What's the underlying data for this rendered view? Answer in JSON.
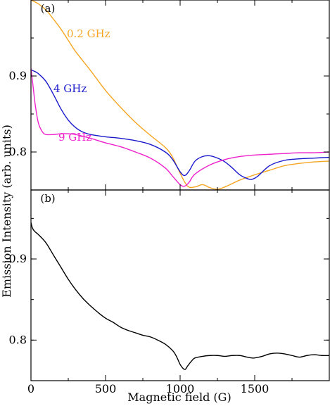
{
  "chart_data": [
    {
      "type": "line",
      "panel_label": "(a)",
      "xlim": [
        0,
        2000
      ],
      "ylim": [
        0.75,
        1.0
      ],
      "yticks": [
        0.8,
        0.9
      ],
      "series": [
        {
          "name": "0.2 GHz",
          "color": "#f5a623",
          "x": [
            0,
            50,
            100,
            150,
            200,
            250,
            300,
            400,
            500,
            600,
            700,
            800,
            900,
            950,
            1000,
            1050,
            1100,
            1150,
            1200,
            1250,
            1300,
            1400,
            1500,
            1600,
            1700,
            1800,
            1900,
            2000
          ],
          "y": [
            1.0,
            0.995,
            0.987,
            0.975,
            0.962,
            0.947,
            0.932,
            0.907,
            0.881,
            0.859,
            0.839,
            0.822,
            0.806,
            0.793,
            0.772,
            0.755,
            0.754,
            0.757,
            0.753,
            0.751,
            0.754,
            0.763,
            0.77,
            0.776,
            0.782,
            0.785,
            0.787,
            0.788
          ]
        },
        {
          "name": "4 GHz",
          "color": "#1a1acc",
          "x": [
            0,
            25,
            50,
            100,
            150,
            200,
            250,
            300,
            350,
            400,
            500,
            600,
            700,
            800,
            900,
            950,
            1000,
            1030,
            1060,
            1100,
            1150,
            1200,
            1250,
            1300,
            1350,
            1400,
            1450,
            1480,
            1520,
            1600,
            1700,
            1800,
            1900,
            2000
          ],
          "y": [
            0.908,
            0.906,
            0.903,
            0.893,
            0.876,
            0.857,
            0.842,
            0.832,
            0.826,
            0.823,
            0.82,
            0.818,
            0.815,
            0.81,
            0.8,
            0.79,
            0.774,
            0.769,
            0.775,
            0.788,
            0.794,
            0.795,
            0.792,
            0.787,
            0.779,
            0.77,
            0.765,
            0.764,
            0.768,
            0.782,
            0.789,
            0.791,
            0.792,
            0.793
          ]
        },
        {
          "name": "9 GHz",
          "color": "#ee22cc",
          "x": [
            0,
            15,
            30,
            50,
            75,
            100,
            150,
            200,
            250,
            300,
            400,
            500,
            600,
            700,
            800,
            900,
            950,
            1000,
            1030,
            1060,
            1100,
            1200,
            1300,
            1400,
            1500,
            1600,
            1700,
            1800,
            1900,
            2000
          ],
          "y": [
            0.91,
            0.885,
            0.86,
            0.838,
            0.827,
            0.823,
            0.823,
            0.824,
            0.824,
            0.823,
            0.818,
            0.812,
            0.807,
            0.8,
            0.792,
            0.779,
            0.768,
            0.757,
            0.755,
            0.76,
            0.771,
            0.783,
            0.79,
            0.794,
            0.796,
            0.797,
            0.798,
            0.799,
            0.799,
            0.8
          ]
        }
      ]
    },
    {
      "type": "line",
      "panel_label": "(b)",
      "xlim": [
        0,
        2000
      ],
      "ylim": [
        0.75,
        0.985
      ],
      "yticks": [
        0.8,
        0.9
      ],
      "xticks": [
        0,
        500,
        1000,
        1500
      ],
      "xlabel": "Magnetic field (G)",
      "ylabel": "Emission Intensity (arb. units)",
      "series": [
        {
          "name": "",
          "color": "#000000",
          "x": [
            0,
            10,
            25,
            50,
            100,
            150,
            200,
            250,
            300,
            350,
            400,
            450,
            500,
            550,
            600,
            650,
            700,
            750,
            800,
            850,
            900,
            950,
            975,
            1000,
            1020,
            1035,
            1050,
            1080,
            1100,
            1150,
            1200,
            1250,
            1300,
            1350,
            1400,
            1450,
            1480,
            1500,
            1550,
            1600,
            1650,
            1700,
            1750,
            1800,
            1850,
            1900,
            1950,
            2000
          ],
          "y": [
            0.945,
            0.938,
            0.934,
            0.93,
            0.92,
            0.905,
            0.89,
            0.875,
            0.862,
            0.851,
            0.842,
            0.834,
            0.827,
            0.822,
            0.816,
            0.812,
            0.809,
            0.806,
            0.804,
            0.8,
            0.795,
            0.787,
            0.78,
            0.77,
            0.765,
            0.764,
            0.768,
            0.775,
            0.778,
            0.78,
            0.781,
            0.781,
            0.78,
            0.781,
            0.781,
            0.779,
            0.778,
            0.778,
            0.78,
            0.783,
            0.784,
            0.783,
            0.781,
            0.779,
            0.781,
            0.782,
            0.781,
            0.781
          ]
        }
      ]
    }
  ]
}
